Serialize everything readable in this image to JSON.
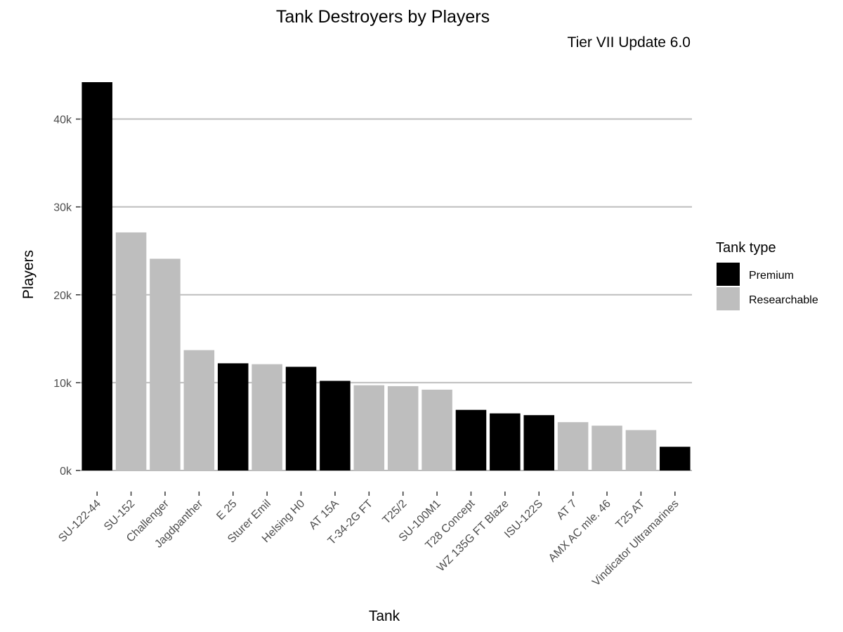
{
  "chart_data": {
    "type": "bar",
    "title": "Tank Destroyers by Players",
    "subtitle": "Tier VII Update 6.0",
    "xlabel": "Tank",
    "ylabel": "Players",
    "ylim": [
      0,
      45000
    ],
    "yticks": [
      0,
      10000,
      20000,
      30000,
      40000
    ],
    "ytick_labels": [
      "0k",
      "10k",
      "20k",
      "30k",
      "40k"
    ],
    "grid": "horizontal",
    "legend_position": "right",
    "legend_title": "Tank type",
    "types": [
      {
        "name": "Premium",
        "color": "#000000"
      },
      {
        "name": "Researchable",
        "color": "#bebebe"
      }
    ],
    "categories": [
      "SU-122-44",
      "SU-152",
      "Challenger",
      "Jagdpanther",
      "E 25",
      "Sturer Emil",
      "Helsing H0",
      "AT 15A",
      "T-34-2G FT",
      "T25/2",
      "SU-100M1",
      "T28 Concept",
      "WZ 135G FT Blaze",
      "ISU-122S",
      "AT 7",
      "AMX AC mle. 46",
      "T25 AT",
      "Vindicator Ultramarines"
    ],
    "values": [
      44200,
      27100,
      24100,
      13700,
      12200,
      12100,
      11800,
      10200,
      9700,
      9600,
      9200,
      6900,
      6500,
      6300,
      5500,
      5100,
      4600,
      2700
    ],
    "bar_types": [
      "Premium",
      "Researchable",
      "Researchable",
      "Researchable",
      "Premium",
      "Researchable",
      "Premium",
      "Premium",
      "Researchable",
      "Researchable",
      "Researchable",
      "Premium",
      "Premium",
      "Premium",
      "Researchable",
      "Researchable",
      "Researchable",
      "Premium"
    ]
  }
}
